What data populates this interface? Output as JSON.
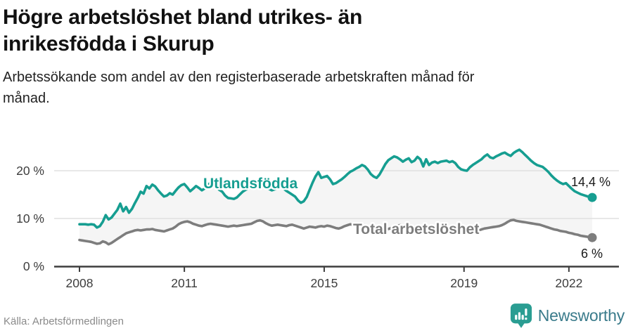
{
  "header": {
    "title_line1": "Högre arbetslöshet bland utrikes- än",
    "title_line2": "inrikesfödda i Skurup",
    "subtitle_line1": "Arbetssökande som andel av den registerbaserade arbetskraften månad för",
    "subtitle_line2": "månad."
  },
  "footer": {
    "source": "Källa: Arbetsförmedlingen",
    "brand": "Newsworthy"
  },
  "colors": {
    "accent": "#169e91",
    "gray_line": "#7d7d7d",
    "fill_between": "#f5f5f5",
    "grid": "#e0e0e0",
    "axis": "#3d3d3d",
    "text": "#1a1a1a",
    "muted": "#8a8a8a",
    "brand_icon": "#2a9d92",
    "brand_text": "#3a7b8b"
  },
  "chart_data": {
    "type": "line",
    "title": "Högre arbetslöshet bland utrikes- än inrikesfödda i Skurup",
    "subtitle": "Arbetssökande som andel av den registerbaserade arbetskraften månad för månad.",
    "x_unit": "month",
    "x_start": "2008-01",
    "x_end": "2022-09",
    "grid": true,
    "fill_between_series": true,
    "legend_position": "inline-labels",
    "ylim": [
      0,
      26
    ],
    "y_ticks": [
      {
        "value": 0,
        "label": "0 %"
      },
      {
        "value": 10,
        "label": "10 %"
      },
      {
        "value": 20,
        "label": "20 %"
      }
    ],
    "x_ticks": [
      {
        "year": 2008,
        "label": "2008"
      },
      {
        "year": 2011,
        "label": "2011"
      },
      {
        "year": 2015,
        "label": "2015"
      },
      {
        "year": 2019,
        "label": "2019"
      },
      {
        "year": 2022,
        "label": "2022"
      }
    ],
    "series": [
      {
        "name": "Utlandsfödda",
        "color": "#169e91",
        "end_label": "14,4 %",
        "end_value": 14.4,
        "values": [
          8.8,
          8.8,
          8.8,
          8.7,
          8.8,
          8.7,
          8.1,
          8.4,
          9.3,
          10.7,
          9.8,
          10.2,
          11.0,
          11.8,
          13.1,
          11.5,
          12.4,
          11.2,
          12.0,
          13.2,
          14.3,
          15.6,
          15.2,
          16.8,
          16.3,
          17.1,
          16.7,
          15.9,
          15.2,
          14.6,
          14.8,
          15.3,
          15.0,
          15.8,
          16.5,
          17.0,
          17.2,
          16.5,
          15.7,
          16.2,
          16.8,
          16.4,
          15.9,
          16.3,
          17.0,
          17.5,
          17.3,
          16.5,
          16.0,
          15.6,
          14.8,
          14.3,
          14.2,
          14.1,
          14.4,
          15.0,
          15.6,
          16.0,
          16.3,
          16.5,
          16.6,
          16.9,
          17.1,
          16.8,
          16.5,
          16.2,
          15.9,
          16.1,
          16.4,
          16.6,
          16.3,
          15.8,
          15.4,
          15.0,
          14.6,
          13.8,
          13.3,
          13.6,
          14.5,
          16.0,
          17.5,
          18.8,
          19.7,
          18.5,
          18.7,
          18.9,
          18.2,
          17.2,
          17.4,
          17.8,
          18.2,
          18.7,
          19.3,
          19.8,
          20.1,
          20.5,
          20.8,
          21.2,
          20.9,
          20.2,
          19.3,
          18.8,
          18.5,
          19.2,
          20.3,
          21.4,
          22.2,
          22.6,
          23.0,
          22.8,
          22.4,
          21.9,
          22.3,
          22.6,
          21.8,
          22.1,
          22.9,
          22.4,
          20.9,
          22.4,
          21.2,
          21.7,
          21.9,
          21.6,
          21.9,
          22.0,
          22.1,
          21.8,
          22.0,
          21.6,
          20.8,
          20.3,
          20.1,
          20.0,
          20.7,
          21.2,
          21.6,
          22.0,
          22.4,
          23.0,
          23.4,
          22.8,
          22.6,
          23.0,
          23.3,
          23.6,
          23.8,
          23.4,
          23.1,
          23.7,
          24.1,
          24.4,
          23.9,
          23.3,
          22.7,
          22.1,
          21.6,
          21.2,
          21.0,
          20.8,
          20.3,
          19.7,
          19.0,
          18.4,
          17.9,
          17.5,
          17.2,
          17.4,
          16.8,
          16.2,
          15.7,
          15.4,
          15.1,
          14.9,
          14.7,
          14.5,
          14.4
        ]
      },
      {
        "name": "Total arbetslöshet",
        "color": "#7d7d7d",
        "end_label": "6 %",
        "end_value": 6.0,
        "values": [
          5.5,
          5.4,
          5.3,
          5.2,
          5.1,
          4.9,
          4.7,
          4.8,
          5.2,
          5.0,
          4.6,
          4.9,
          5.3,
          5.7,
          6.1,
          6.5,
          6.9,
          7.1,
          7.3,
          7.5,
          7.6,
          7.5,
          7.6,
          7.7,
          7.7,
          7.8,
          7.6,
          7.5,
          7.4,
          7.3,
          7.5,
          7.7,
          7.9,
          8.3,
          8.8,
          9.1,
          9.3,
          9.4,
          9.2,
          8.9,
          8.7,
          8.5,
          8.4,
          8.6,
          8.8,
          8.9,
          8.8,
          8.7,
          8.6,
          8.5,
          8.4,
          8.3,
          8.4,
          8.5,
          8.4,
          8.5,
          8.6,
          8.7,
          8.8,
          8.9,
          9.2,
          9.5,
          9.6,
          9.4,
          9.0,
          8.7,
          8.5,
          8.6,
          8.7,
          8.6,
          8.5,
          8.4,
          8.6,
          8.7,
          8.5,
          8.3,
          8.1,
          7.9,
          8.1,
          8.3,
          8.2,
          8.1,
          8.3,
          8.4,
          8.3,
          8.5,
          8.4,
          8.2,
          8.0,
          7.9,
          8.1,
          8.4,
          8.6,
          8.8,
          8.6,
          8.4,
          8.3,
          8.2,
          8.0,
          7.9,
          7.8,
          7.7,
          7.9,
          8.1,
          8.0,
          7.9,
          7.8,
          8.0,
          8.2,
          8.4,
          8.6,
          8.5,
          8.3,
          8.2,
          8.1,
          8.2,
          8.3,
          8.2,
          8.1,
          8.0,
          8.1,
          8.0,
          7.9,
          7.8,
          7.9,
          8.0,
          7.9,
          7.8,
          7.9,
          7.8,
          7.7,
          7.6,
          7.5,
          7.4,
          7.5,
          7.7,
          7.6,
          7.5,
          7.7,
          7.9,
          8.0,
          8.1,
          8.2,
          8.3,
          8.4,
          8.6,
          8.9,
          9.3,
          9.6,
          9.7,
          9.5,
          9.4,
          9.3,
          9.2,
          9.1,
          9.0,
          8.9,
          8.8,
          8.7,
          8.5,
          8.3,
          8.1,
          7.9,
          7.7,
          7.6,
          7.4,
          7.3,
          7.2,
          7.0,
          6.9,
          6.7,
          6.6,
          6.4,
          6.3,
          6.2,
          6.1,
          6.0
        ]
      }
    ]
  }
}
